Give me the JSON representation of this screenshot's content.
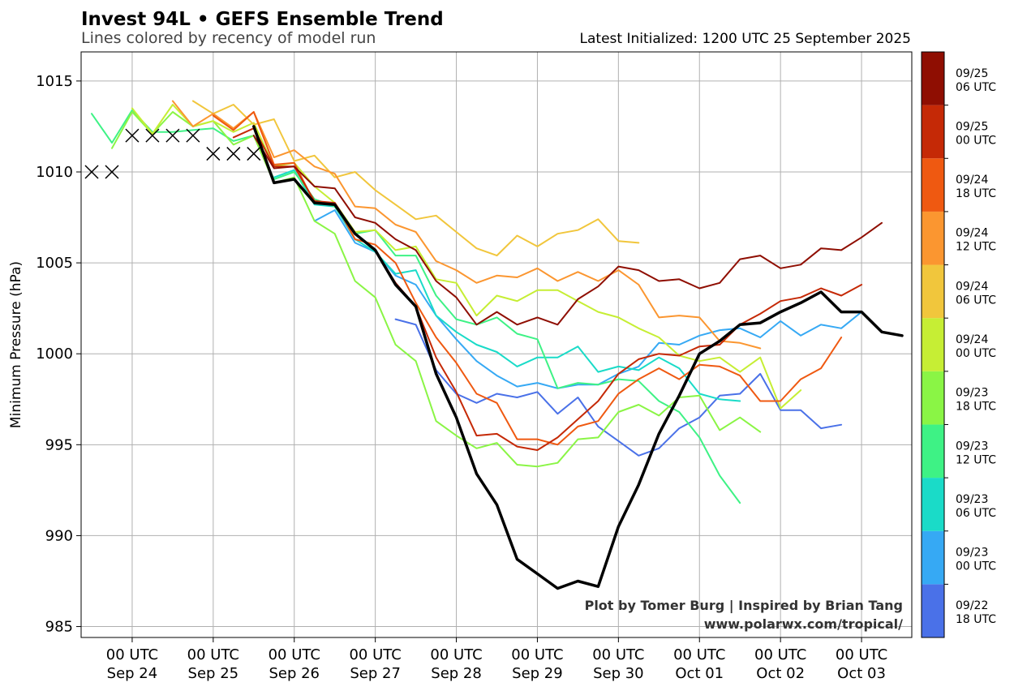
{
  "header": {
    "title": "Invest 94L • GEFS Ensemble Trend",
    "subtitle": "Lines colored by recency of model run",
    "latest_init": "Latest Initialized: 1200 UTC 25 September 2025"
  },
  "footer": {
    "credit_line1": "Plot by Tomer Burg | Inspired by Brian Tang",
    "credit_line2": "www.polarwx.com/tropical/"
  },
  "chart_data": {
    "type": "line",
    "title": "Invest 94L • GEFS Ensemble Trend",
    "subtitle": "Lines colored by recency of model run",
    "ylabel": "Minimum Pressure (hPa)",
    "xlabel": "",
    "x_unit": "days after 00 UTC Sep 24",
    "xlim": [
      -0.63,
      9.62
    ],
    "ylim": [
      984.4,
      1016.6
    ],
    "yticks": [
      985,
      990,
      995,
      1000,
      1005,
      1010,
      1015
    ],
    "xticks": [
      {
        "x": 0,
        "line1": "00 UTC",
        "line2": "Sep 24"
      },
      {
        "x": 1,
        "line1": "00 UTC",
        "line2": "Sep 25"
      },
      {
        "x": 2,
        "line1": "00 UTC",
        "line2": "Sep 26"
      },
      {
        "x": 3,
        "line1": "00 UTC",
        "line2": "Sep 27"
      },
      {
        "x": 4,
        "line1": "00 UTC",
        "line2": "Sep 28"
      },
      {
        "x": 5,
        "line1": "00 UTC",
        "line2": "Sep 29"
      },
      {
        "x": 6,
        "line1": "00 UTC",
        "line2": "Sep 30"
      },
      {
        "x": 7,
        "line1": "00 UTC",
        "line2": "Oct 01"
      },
      {
        "x": 8,
        "line1": "00 UTC",
        "line2": "Oct 02"
      },
      {
        "x": 9,
        "line1": "00 UTC",
        "line2": "Oct 03"
      }
    ],
    "grid": true,
    "legend": "right colorbar",
    "colorbar": [
      {
        "line1": "09/22",
        "line2": "18 UTC",
        "color": "#4a71e8"
      },
      {
        "line1": "09/23",
        "line2": "00 UTC",
        "color": "#36a9f4"
      },
      {
        "line1": "09/23",
        "line2": "06 UTC",
        "color": "#1adbc8"
      },
      {
        "line1": "09/23",
        "line2": "12 UTC",
        "color": "#3ef285"
      },
      {
        "line1": "09/23",
        "line2": "18 UTC",
        "color": "#8af545"
      },
      {
        "line1": "09/24",
        "line2": "00 UTC",
        "color": "#c6ee34"
      },
      {
        "line1": "09/24",
        "line2": "06 UTC",
        "color": "#f1c63c"
      },
      {
        "line1": "09/24",
        "line2": "12 UTC",
        "color": "#fb9630"
      },
      {
        "line1": "09/24",
        "line2": "18 UTC",
        "color": "#ef5911"
      },
      {
        "line1": "09/25",
        "line2": "00 UTC",
        "color": "#c52906"
      },
      {
        "line1": "09/25",
        "line2": "06 UTC",
        "color": "#8f0e02"
      }
    ],
    "observed_best_track": [
      {
        "x": -0.5,
        "y": 1010
      },
      {
        "x": -0.25,
        "y": 1010
      },
      {
        "x": 0,
        "y": 1012
      },
      {
        "x": 0.25,
        "y": 1012
      },
      {
        "x": 0.5,
        "y": 1012
      },
      {
        "x": 0.75,
        "y": 1012
      },
      {
        "x": 1,
        "y": 1011
      },
      {
        "x": 1.25,
        "y": 1011
      },
      {
        "x": 1.5,
        "y": 1011
      }
    ],
    "series": [
      {
        "run": "09/22 18 UTC",
        "color": "#4a71e8",
        "width": 2,
        "x0": 3.25,
        "y": [
          1001.9,
          1001.6,
          999.1,
          997.8,
          997.3,
          997.8,
          997.6,
          997.9,
          996.7,
          997.6,
          996.0,
          995.2,
          994.4,
          994.8,
          995.9,
          996.5,
          997.7,
          997.8,
          998.9,
          996.9,
          996.9,
          995.9,
          996.1
        ]
      },
      {
        "run": "09/23 00 UTC",
        "color": "#36a9f4",
        "width": 2,
        "x0": 2.25,
        "y": [
          1007.3,
          1007.9,
          1006.1,
          1005.6,
          1004.3,
          1003.8,
          1002.1,
          1000.8,
          999.6,
          998.8,
          998.2,
          998.4,
          998.1,
          998.3,
          998.3,
          998.9,
          999.3,
          1000.6,
          1000.5,
          1001.0,
          1001.3,
          1001.4,
          1000.9,
          1001.8,
          1001.0,
          1001.6,
          1001.4,
          1002.3
        ]
      },
      {
        "run": "09/23 06 UTC",
        "color": "#1adbc8",
        "width": 2,
        "x0": 1.75,
        "y": [
          1009.7,
          1010.1,
          1008.2,
          1008.1,
          1006.3,
          1005.6,
          1004.4,
          1004.6,
          1002.1,
          1001.2,
          1000.5,
          1000.1,
          999.3,
          999.8,
          999.8,
          1000.4,
          999.0,
          999.3,
          999.1,
          999.8,
          999.2,
          997.8,
          997.5,
          997.4
        ]
      },
      {
        "run": "09/23 12 UTC",
        "color": "#3ef285",
        "width": 2,
        "x0": -0.5,
        "y": [
          1013.2,
          1011.6,
          1013.4,
          1012.2,
          1012.2,
          1012.3,
          1012.4,
          1011.7,
          1012.0,
          1009.6,
          1010.0,
          1008.5,
          1008.1,
          1006.6,
          1006.8,
          1005.4,
          1005.4,
          1003.2,
          1001.9,
          1001.6,
          1002.0,
          1001.1,
          1000.8,
          998.1,
          998.4,
          998.3,
          998.6,
          998.5,
          997.4,
          996.8,
          995.4,
          993.3,
          991.8
        ]
      },
      {
        "run": "09/23 18 UTC",
        "color": "#8af545",
        "width": 2,
        "x0": -0.25,
        "y": [
          1011.3,
          1013.3,
          1012.1,
          1013.3,
          1012.5,
          1012.8,
          1011.5,
          1012.0,
          1009.4,
          1009.7,
          1007.3,
          1006.6,
          1004.0,
          1003.1,
          1000.5,
          999.6,
          996.3,
          995.5,
          994.8,
          995.1,
          993.9,
          993.8,
          994.0,
          995.3,
          995.4,
          996.8,
          997.2,
          996.6,
          997.6,
          997.7,
          995.8,
          996.5,
          995.7
        ]
      },
      {
        "run": "09/24 00 UTC",
        "color": "#c6ee34",
        "width": 2,
        "x0": 0,
        "y": [
          1013.5,
          1012.1,
          1013.7,
          1012.5,
          1012.8,
          1012.2,
          1012.7,
          1010.3,
          1010.5,
          1009.2,
          1008.3,
          1006.7,
          1006.8,
          1005.7,
          1005.9,
          1004.1,
          1003.9,
          1002.1,
          1003.2,
          1002.9,
          1003.5,
          1003.5,
          1002.9,
          1002.3,
          1002.0,
          1001.4,
          1000.9,
          999.9,
          999.6,
          999.8,
          999.0,
          999.8,
          997.0,
          998.0
        ]
      },
      {
        "run": "09/24 06 UTC",
        "color": "#f1c63c",
        "width": 2,
        "x0": 0.75,
        "y": [
          1013.9,
          1013.2,
          1013.7,
          1012.6,
          1012.9,
          1010.6,
          1010.9,
          1009.7,
          1010.0,
          1009.0,
          1008.2,
          1007.4,
          1007.6,
          1006.7,
          1005.8,
          1005.4,
          1006.5,
          1005.9,
          1006.6,
          1006.8,
          1007.4,
          1006.2,
          1006.1
        ]
      },
      {
        "run": "09/24 12 UTC",
        "color": "#fb9630",
        "width": 2,
        "x0": 0.5,
        "y": [
          1013.9,
          1012.5,
          1013.2,
          1012.4,
          1013.3,
          1010.8,
          1011.2,
          1010.3,
          1009.9,
          1008.1,
          1008.0,
          1007.1,
          1006.7,
          1005.1,
          1004.6,
          1003.9,
          1004.3,
          1004.2,
          1004.7,
          1004.0,
          1004.5,
          1004.0,
          1004.6,
          1003.8,
          1002.0,
          1002.1,
          1002.0,
          1000.7,
          1000.6,
          1000.3
        ]
      },
      {
        "run": "09/24 18 UTC",
        "color": "#ef5911",
        "width": 2,
        "x0": 1,
        "y": [
          1013.1,
          1012.3,
          1013.3,
          1010.4,
          1010.5,
          1008.3,
          1008.3,
          1006.3,
          1006.0,
          1005.0,
          1002.8,
          1000.9,
          999.5,
          997.8,
          997.3,
          995.3,
          995.3,
          995.0,
          996.0,
          996.3,
          997.8,
          998.6,
          999.2,
          998.6,
          999.4,
          999.3,
          998.8,
          997.4,
          997.4,
          998.6,
          999.2,
          1000.9
        ]
      },
      {
        "run": "09/25 00 UTC",
        "color": "#c52906",
        "width": 2,
        "x0": 1.25,
        "y": [
          1011.9,
          1012.4,
          1010.3,
          1010.3,
          1008.4,
          1008.3,
          1006.6,
          1005.7,
          1003.9,
          1002.6,
          999.8,
          997.9,
          995.5,
          995.6,
          994.9,
          994.7,
          995.4,
          996.4,
          997.4,
          998.9,
          999.7,
          1000.0,
          999.9,
          1000.4,
          1000.5,
          1001.6,
          1002.2,
          1002.9,
          1003.1,
          1003.6,
          1003.2,
          1003.8
        ]
      },
      {
        "run": "09/25 06 UTC",
        "color": "#8f0e02",
        "width": 2,
        "x0": 1.5,
        "y": [
          1012.0,
          1010.2,
          1010.3,
          1009.2,
          1009.1,
          1007.5,
          1007.2,
          1006.3,
          1005.7,
          1004.0,
          1003.1,
          1001.6,
          1002.3,
          1001.6,
          1002.0,
          1001.6,
          1003.0,
          1003.7,
          1004.8,
          1004.6,
          1004.0,
          1004.1,
          1003.6,
          1003.9,
          1005.2,
          1005.4,
          1004.7,
          1004.9,
          1005.8,
          1005.7,
          1006.4,
          1007.2
        ]
      },
      {
        "run": "Ensemble mean (latest)",
        "color": "#000000",
        "width": 3.5,
        "x0": 1.5,
        "y": [
          1012.5,
          1009.4,
          1009.6,
          1008.3,
          1008.2,
          1006.6,
          1005.7,
          1003.8,
          1002.6,
          998.9,
          996.5,
          993.4,
          991.7,
          988.7,
          987.9,
          987.1,
          987.5,
          987.2,
          990.5,
          992.8,
          995.6,
          997.7,
          1000.0,
          1000.7,
          1001.6,
          1001.7,
          1002.3,
          1002.8,
          1003.4,
          1002.3,
          1002.3,
          1001.2,
          1001.0
        ]
      }
    ]
  }
}
